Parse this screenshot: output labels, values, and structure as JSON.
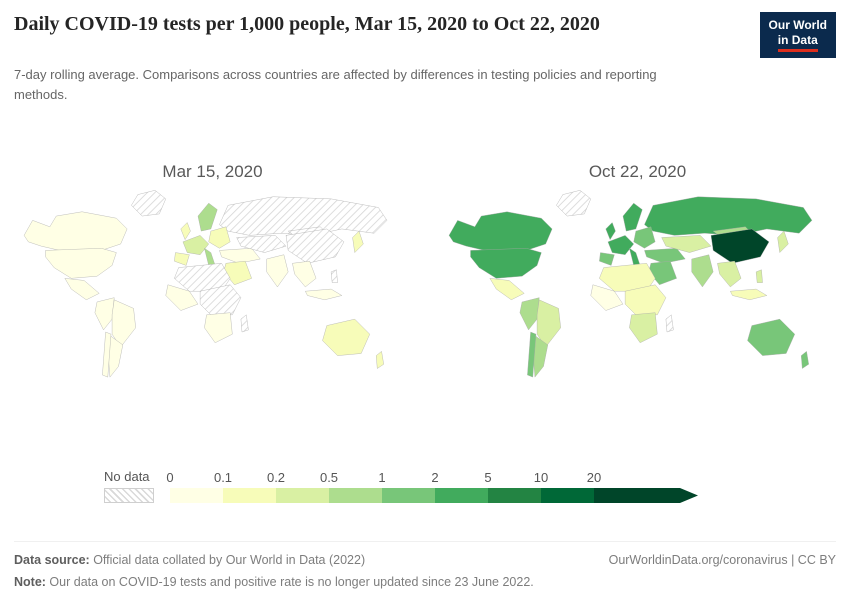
{
  "header": {
    "title": "Daily COVID-19 tests per 1,000 people, Mar 15, 2020 to Oct 22, 2020",
    "subtitle": "7-day rolling average. Comparisons across countries are affected by differences in testing policies and reporting methods.",
    "logo": {
      "line1": "Our World",
      "line2": "in Data"
    }
  },
  "chart_data": {
    "type": "heatmap",
    "subtype": "choropleth-world-map",
    "title": "Daily COVID-19 tests per 1,000 people",
    "unit": "daily tests per 1,000 people (7-day rolling average)",
    "panels": [
      {
        "label": "Mar 15, 2020",
        "regions": {
          "russia": "no-data",
          "greenland": "no-data",
          "canada": "0",
          "usa": "0",
          "mexico": "0",
          "colombia-peru": "0",
          "brazil": "0",
          "argentina": "0",
          "chile": "0",
          "scandinavia": "0.5",
          "uk": "0.1",
          "east-europe": "0.1",
          "west-europe": "0.2",
          "iberia": "0.1",
          "italy": "0.5",
          "turkey-iran": "0",
          "kazakhstan": "no-data",
          "mongolia": "no-data",
          "china": "no-data",
          "japan": "0.1",
          "middle-east": "0.1",
          "north-africa": "no-data",
          "west-africa": "0",
          "east-africa": "no-data",
          "southern-africa": "0",
          "madagascar": "no-data",
          "india": "0",
          "se-asia": "0",
          "philippines": "no-data",
          "indonesia": "0",
          "australia": "0.1",
          "new-zealand": "0.1"
        }
      },
      {
        "label": "Oct 22, 2020",
        "regions": {
          "russia": "2",
          "greenland": "no-data",
          "canada": "2",
          "usa": "2",
          "mexico": "0.1",
          "colombia-peru": "0.5",
          "brazil": "0.2",
          "argentina": "0.5",
          "chile": "1",
          "scandinavia": "2",
          "uk": "2",
          "east-europe": "1",
          "west-europe": "2",
          "iberia": "1",
          "italy": "2",
          "turkey-iran": "1",
          "kazakhstan": "0.2",
          "mongolia": "0.5",
          "china": "20",
          "japan": "0.2",
          "middle-east": "1",
          "north-africa": "0.1",
          "west-africa": "0",
          "east-africa": "0.1",
          "southern-africa": "0.2",
          "madagascar": "no-data",
          "india": "0.5",
          "se-asia": "0.2",
          "philippines": "0.2",
          "indonesia": "0.1",
          "australia": "1",
          "new-zealand": "1"
        }
      }
    ],
    "legend": {
      "no_data_label": "No data",
      "tick_labels": [
        "0",
        "0.1",
        "0.2",
        "0.5",
        "1",
        "2",
        "5",
        "10",
        "20"
      ],
      "bins": [
        "0",
        "0.1",
        "0.2",
        "0.5",
        "1",
        "2",
        "5",
        "10",
        "20"
      ],
      "open_ended_max": true,
      "colors": {
        "0": "#ffffe5",
        "0.1": "#f7fcb9",
        "0.2": "#d9f0a3",
        "0.5": "#addd8e",
        "1": "#78c679",
        "2": "#41ab5d",
        "5": "#238443",
        "10": "#006837",
        "20": "#004529"
      },
      "no_data_pattern": "diagonal-hatch-gray"
    }
  },
  "footer": {
    "source_label": "Data source:",
    "source_text": " Official data collated by Our World in Data (2022)",
    "link": "OurWorldinData.org/coronavirus | CC BY",
    "note_label": "Note:",
    "note_text": " Our data on COVID-19 tests and positive rate is no longer updated since 23 June 2022."
  }
}
